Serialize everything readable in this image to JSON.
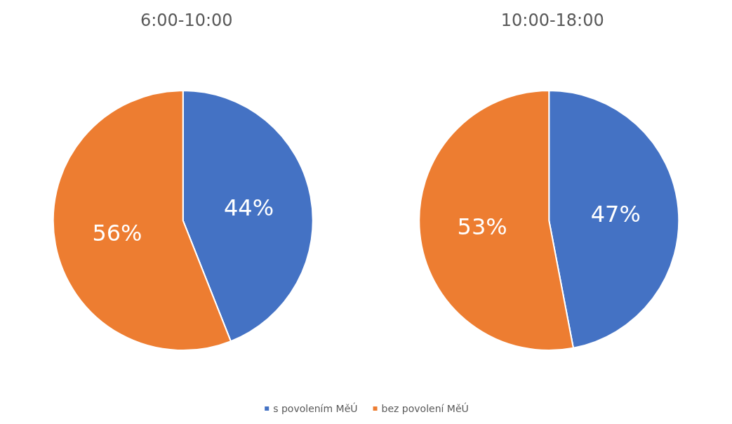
{
  "chart_data": [
    {
      "type": "pie",
      "title": "6:00-10:00",
      "categories": [
        "s povolením MěÚ",
        "bez povolení MěÚ"
      ],
      "values": [
        44,
        56
      ],
      "colors": [
        "#4472c4",
        "#ed7d31"
      ],
      "value_labels": [
        "44%",
        "56%"
      ],
      "legend": "bottom"
    },
    {
      "type": "pie",
      "title": "10:00-18:00",
      "categories": [
        null,
        null
      ],
      "values": [
        47,
        53
      ],
      "colors": [
        "#4472c4",
        "#ed7d31"
      ],
      "value_labels": [
        "47%",
        "53%"
      ]
    }
  ]
}
